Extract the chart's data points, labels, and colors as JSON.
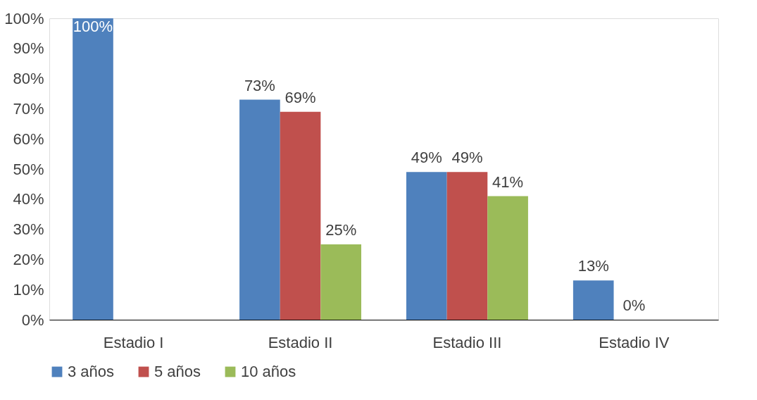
{
  "chart_data": {
    "type": "bar",
    "categories": [
      "Estadio I",
      "Estadio II",
      "Estadio III",
      "Estadio IV"
    ],
    "series": [
      {
        "name": "3 años",
        "color": "#4f81bd",
        "values": [
          100,
          73,
          49,
          13
        ],
        "value_labels": [
          "100%",
          "73%",
          "49%",
          "13%"
        ]
      },
      {
        "name": "5 años",
        "color": "#c0504d",
        "values": [
          null,
          69,
          49,
          0
        ],
        "value_labels": [
          null,
          "69%",
          "49%",
          "0%"
        ]
      },
      {
        "name": "10 años",
        "color": "#9bbb59",
        "values": [
          null,
          25,
          41,
          null
        ],
        "value_labels": [
          null,
          "25%",
          "41%",
          null
        ]
      }
    ],
    "ylim": [
      0,
      100
    ],
    "yticks": [
      {
        "value": 0,
        "label": "0%"
      },
      {
        "value": 10,
        "label": "10%"
      },
      {
        "value": 20,
        "label": "20%"
      },
      {
        "value": 30,
        "label": "30%"
      },
      {
        "value": 40,
        "label": "40%"
      },
      {
        "value": 50,
        "label": "50%"
      },
      {
        "value": 60,
        "label": "60%"
      },
      {
        "value": 70,
        "label": "70%"
      },
      {
        "value": 80,
        "label": "80%"
      },
      {
        "value": 90,
        "label": "90%"
      },
      {
        "value": 100,
        "label": "100%"
      }
    ],
    "grid": false,
    "legend": "bottom"
  }
}
